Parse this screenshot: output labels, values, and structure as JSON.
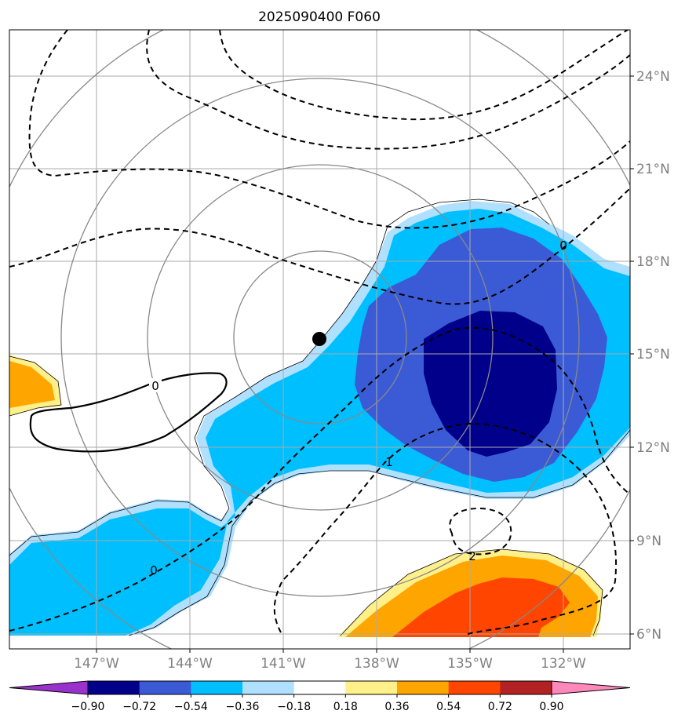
{
  "chart_data": {
    "type": "contour-map",
    "title": "2025090400 F060",
    "projection": "lat-lon",
    "x_range_lon": [
      -150.5,
      -130.5
    ],
    "y_range_lat": [
      5.5,
      25.5
    ],
    "x_ticks": [
      {
        "lon": -147,
        "label": "147°W"
      },
      {
        "lon": -144,
        "label": "144°W"
      },
      {
        "lon": -141,
        "label": "141°W"
      },
      {
        "lon": -138,
        "label": "138°W"
      },
      {
        "lon": -135,
        "label": "135°W"
      },
      {
        "lon": -132,
        "label": "132°W"
      }
    ],
    "y_ticks": [
      {
        "lat": 6,
        "label": "6°N"
      },
      {
        "lat": 9,
        "label": "9°N"
      },
      {
        "lat": 12,
        "label": "12°N"
      },
      {
        "lat": 15,
        "label": "15°N"
      },
      {
        "lat": 18,
        "label": "18°N"
      },
      {
        "lat": 21,
        "label": "21°N"
      },
      {
        "lat": 24,
        "label": "24°N"
      }
    ],
    "grid": true,
    "storm_center": {
      "lon": -140.2,
      "lat": 15.5
    },
    "range_rings_center": {
      "lon": -140.2,
      "lat": 15.5
    },
    "range_ring_count": 4,
    "colorbar": {
      "ticks": [
        "−0.90",
        "−0.72",
        "−0.54",
        "−0.36",
        "−0.18",
        "0.18",
        "0.36",
        "0.54",
        "0.72",
        "0.90"
      ],
      "colors": [
        "#9932cc",
        "#00008b",
        "#3b5bd6",
        "#00bfff",
        "#b0e0ff",
        "#ffffff",
        "#fff08a",
        "#ffa500",
        "#ff4500",
        "#b22222",
        "#ff88bb"
      ],
      "extend": "both"
    },
    "contour_labels": [
      "0",
      "0",
      "0",
      "1",
      "2"
    ]
  }
}
